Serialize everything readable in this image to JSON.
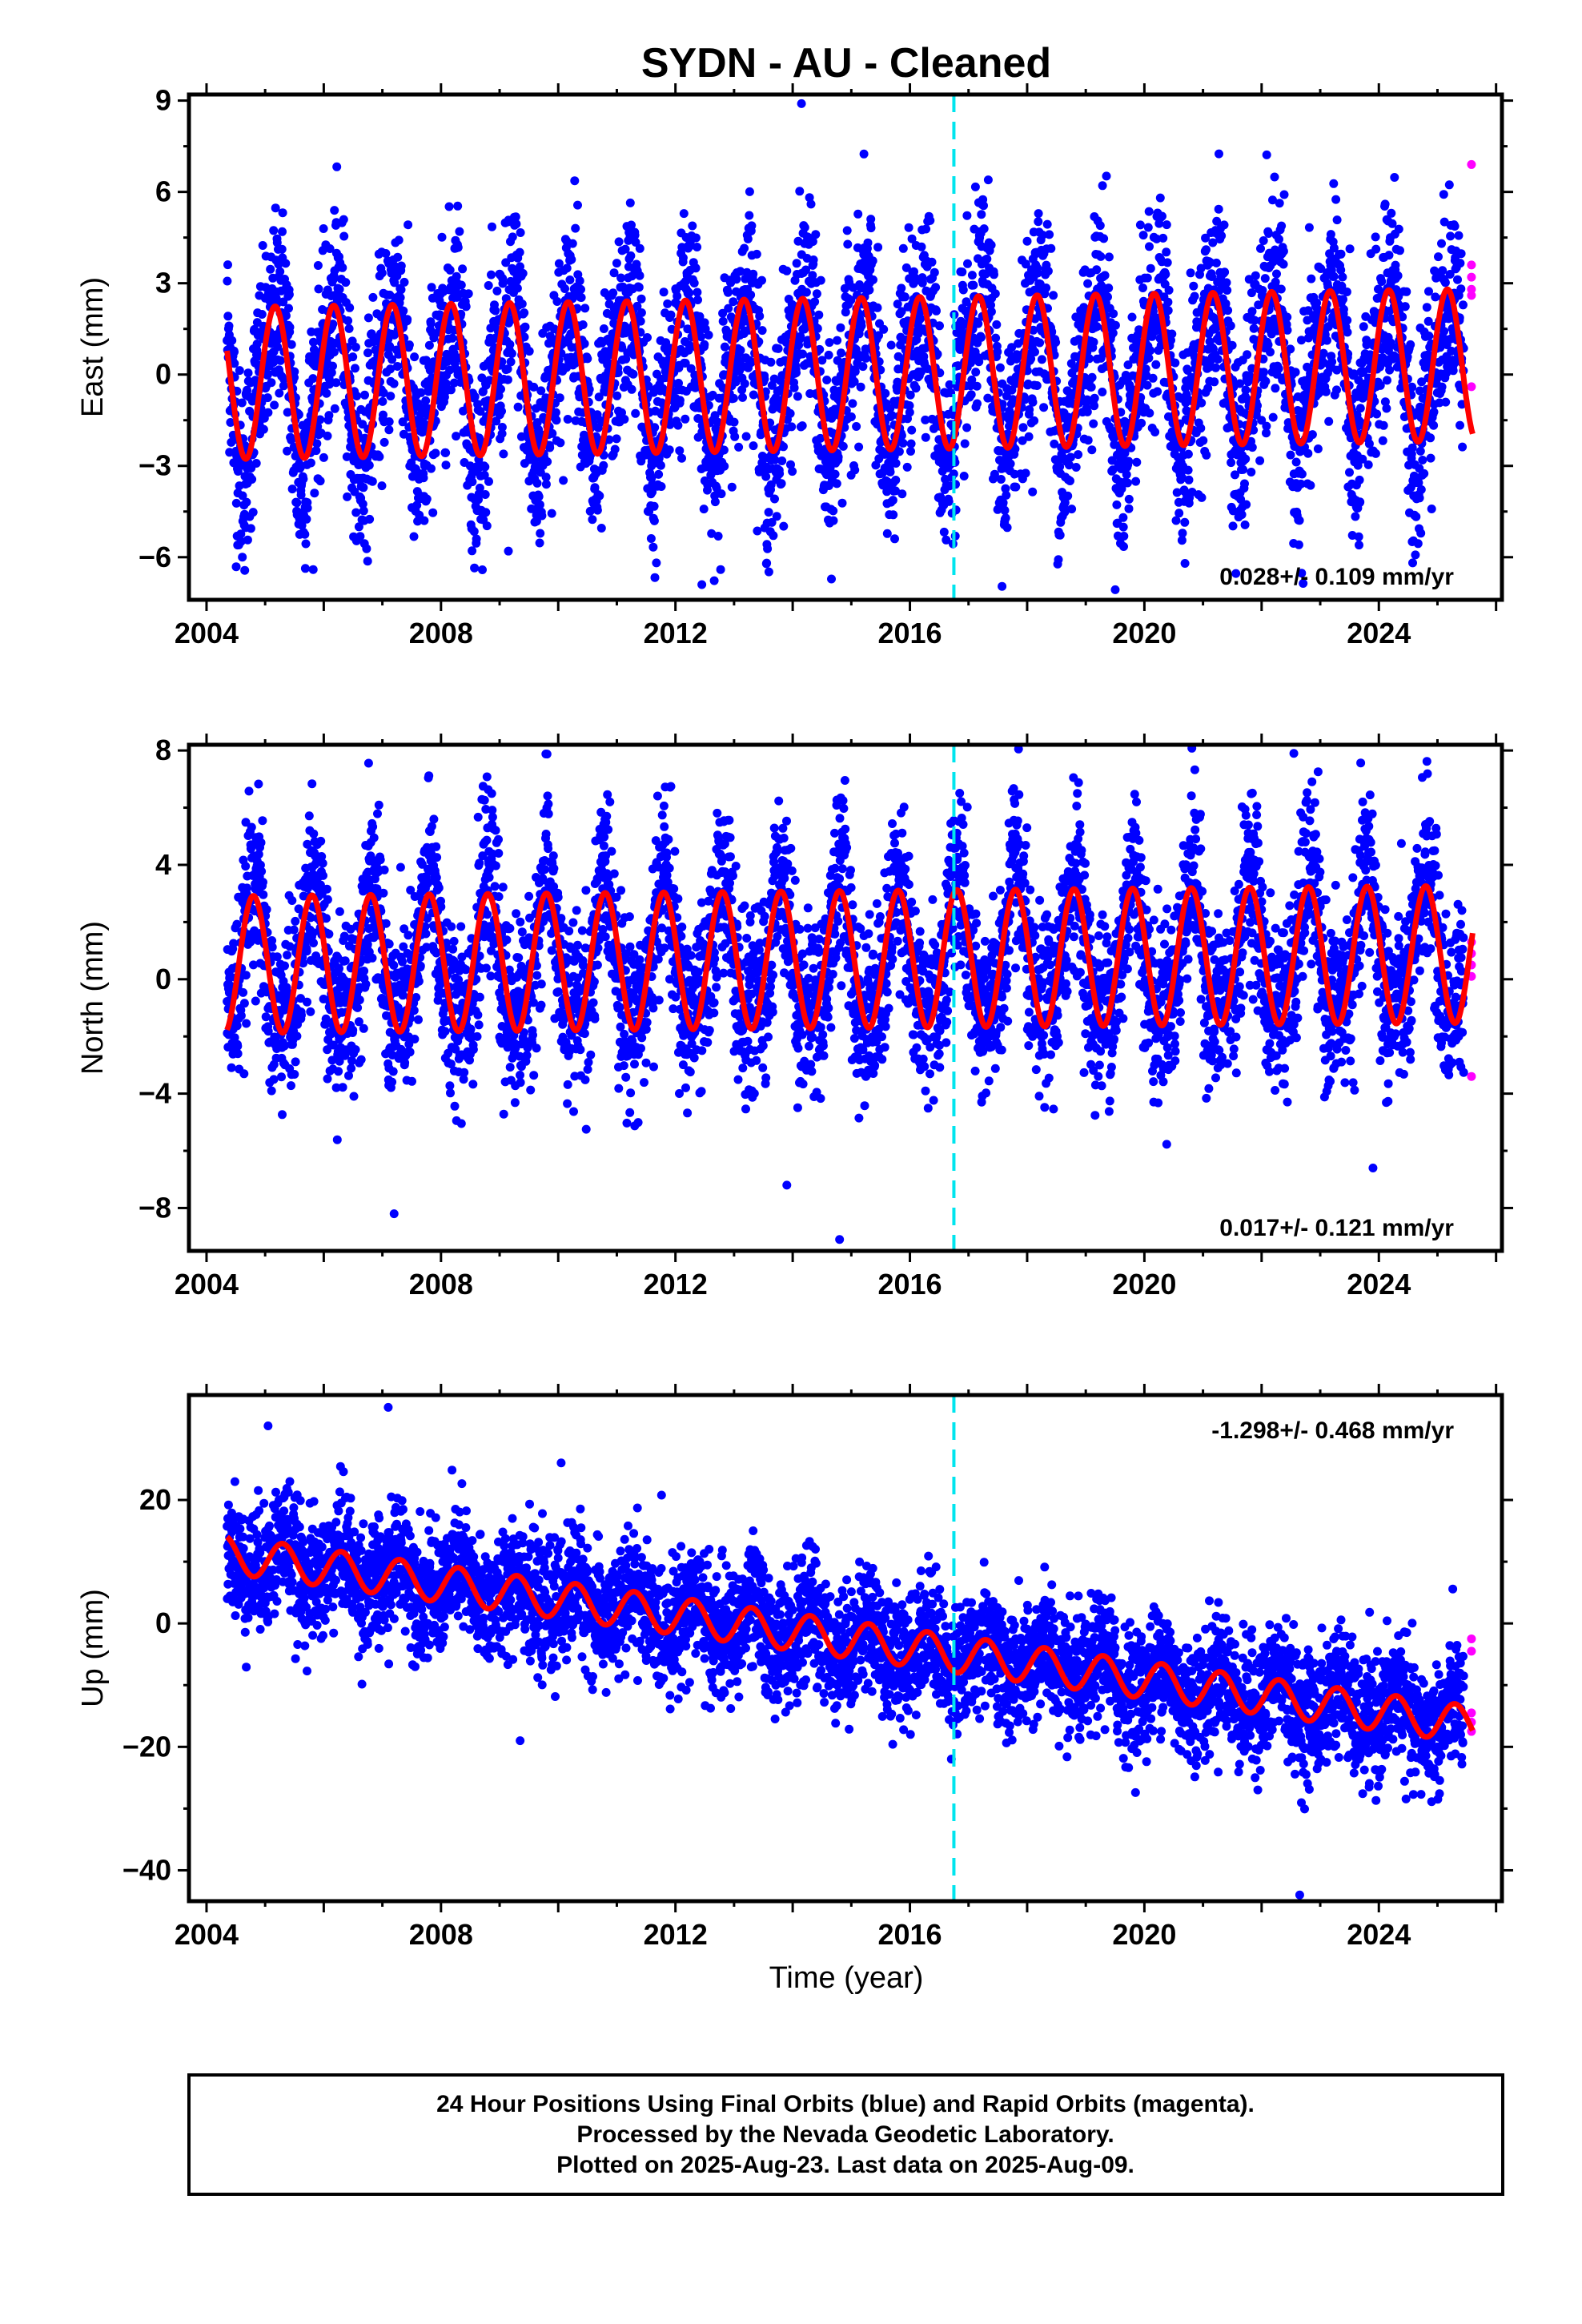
{
  "title": "SYDN  - AU - Cleaned",
  "xlabel": "Time (year)",
  "caption": [
    "24 Hour Positions Using Final Orbits (blue) and Rapid Orbits (magenta).",
    "Processed by the Nevada Geodetic Laboratory.",
    "Plotted on 2025-Aug-23. Last data on 2025-Aug-09."
  ],
  "colors": {
    "final_orbits": "#0000ff",
    "rapid_orbits": "#ff00ff",
    "model": "#ff0000",
    "equipment_change": "#00e5ee"
  },
  "chart_data": [
    {
      "type": "scatter",
      "ylabel": "East (mm)",
      "rate_label": "0.028+/- 0.109 mm/yr",
      "xlim": [
        2003.7,
        2026.1
      ],
      "ylim": [
        -7.4,
        9.2
      ],
      "x_ticks": [
        "2004",
        "2008",
        "2012",
        "2016",
        "2020",
        "2024"
      ],
      "y_ticks": [
        "−6",
        "−3",
        "0",
        "3",
        "6",
        "9"
      ],
      "y_tick_values": [
        -6,
        -3,
        0,
        3,
        6,
        9
      ],
      "equipment_change_x": 2016.75,
      "series": [
        {
          "role": "final_orbits",
          "x_range": [
            2004.35,
            2025.45
          ],
          "amplitude": 2.5,
          "noise": 1.6
        },
        {
          "role": "rapid_orbits",
          "points": [
            [
              2025.58,
              6.9
            ],
            [
              2025.58,
              3.6
            ],
            [
              2025.58,
              3.2
            ],
            [
              2025.58,
              2.8
            ],
            [
              2025.58,
              2.6
            ],
            [
              2025.58,
              -0.4
            ]
          ]
        },
        {
          "role": "model",
          "trend_mm_per_yr": 0.028,
          "offset": -0.3,
          "annual_amp": 2.5
        }
      ],
      "outliers": [
        [
          2014.15,
          8.9
        ],
        [
          2009.15,
          -5.8
        ],
        [
          2019.55,
          -5.3
        ],
        [
          2012.45,
          -6.9
        ]
      ]
    },
    {
      "type": "scatter",
      "ylabel": "North (mm)",
      "rate_label": "0.017+/- 0.121 mm/yr",
      "xlim": [
        2003.7,
        2026.1
      ],
      "ylim": [
        -9.5,
        8.2
      ],
      "x_ticks": [
        "2004",
        "2008",
        "2012",
        "2016",
        "2020",
        "2024"
      ],
      "y_ticks": [
        "−8",
        "−4",
        "0",
        "4",
        "8"
      ],
      "y_tick_values": [
        -8,
        -4,
        0,
        4,
        8
      ],
      "equipment_change_x": 2016.75,
      "series": [
        {
          "role": "final_orbits",
          "x_range": [
            2004.35,
            2025.45
          ],
          "amplitude": 2.3,
          "noise": 1.5
        },
        {
          "role": "rapid_orbits",
          "points": [
            [
              2025.58,
              1.3
            ],
            [
              2025.58,
              0.9
            ],
            [
              2025.58,
              0.5
            ],
            [
              2025.58,
              0.1
            ],
            [
              2025.58,
              -3.4
            ]
          ]
        },
        {
          "role": "model",
          "trend_mm_per_yr": 0.017,
          "offset": 0.5,
          "annual_amp": 2.4
        }
      ],
      "outliers": [
        [
          2007.2,
          -8.2
        ],
        [
          2014.8,
          -9.1
        ],
        [
          2013.9,
          -7.2
        ],
        [
          2022.55,
          7.9
        ],
        [
          2023.9,
          -6.6
        ]
      ]
    },
    {
      "type": "scatter",
      "ylabel": "Up (mm)",
      "rate_label": "-1.298+/- 0.468 mm/yr",
      "xlim": [
        2003.7,
        2026.1
      ],
      "ylim": [
        -45,
        37
      ],
      "x_ticks": [
        "2004",
        "2008",
        "2012",
        "2016",
        "2020",
        "2024"
      ],
      "y_ticks": [
        "−40",
        "−20",
        "0",
        "20"
      ],
      "y_tick_values": [
        -40,
        -20,
        0,
        20
      ],
      "equipment_change_x": 2016.75,
      "series": [
        {
          "role": "final_orbits",
          "x_range": [
            2004.35,
            2025.45
          ],
          "amplitude": 3.0,
          "noise": 5.0
        },
        {
          "role": "rapid_orbits",
          "points": [
            [
              2025.58,
              -2.5
            ],
            [
              2025.58,
              -4.5
            ],
            [
              2025.58,
              -14.5
            ],
            [
              2025.58,
              -16.0
            ],
            [
              2025.58,
              -17.5
            ]
          ]
        },
        {
          "role": "model",
          "trend_mm_per_yr": -1.298,
          "offset": 12.0,
          "annual_amp": 3.0
        }
      ],
      "outliers": [
        [
          2005.05,
          32
        ],
        [
          2007.1,
          35
        ],
        [
          2022.65,
          -44
        ],
        [
          2009.35,
          -19
        ],
        [
          2010.05,
          26
        ]
      ]
    }
  ]
}
